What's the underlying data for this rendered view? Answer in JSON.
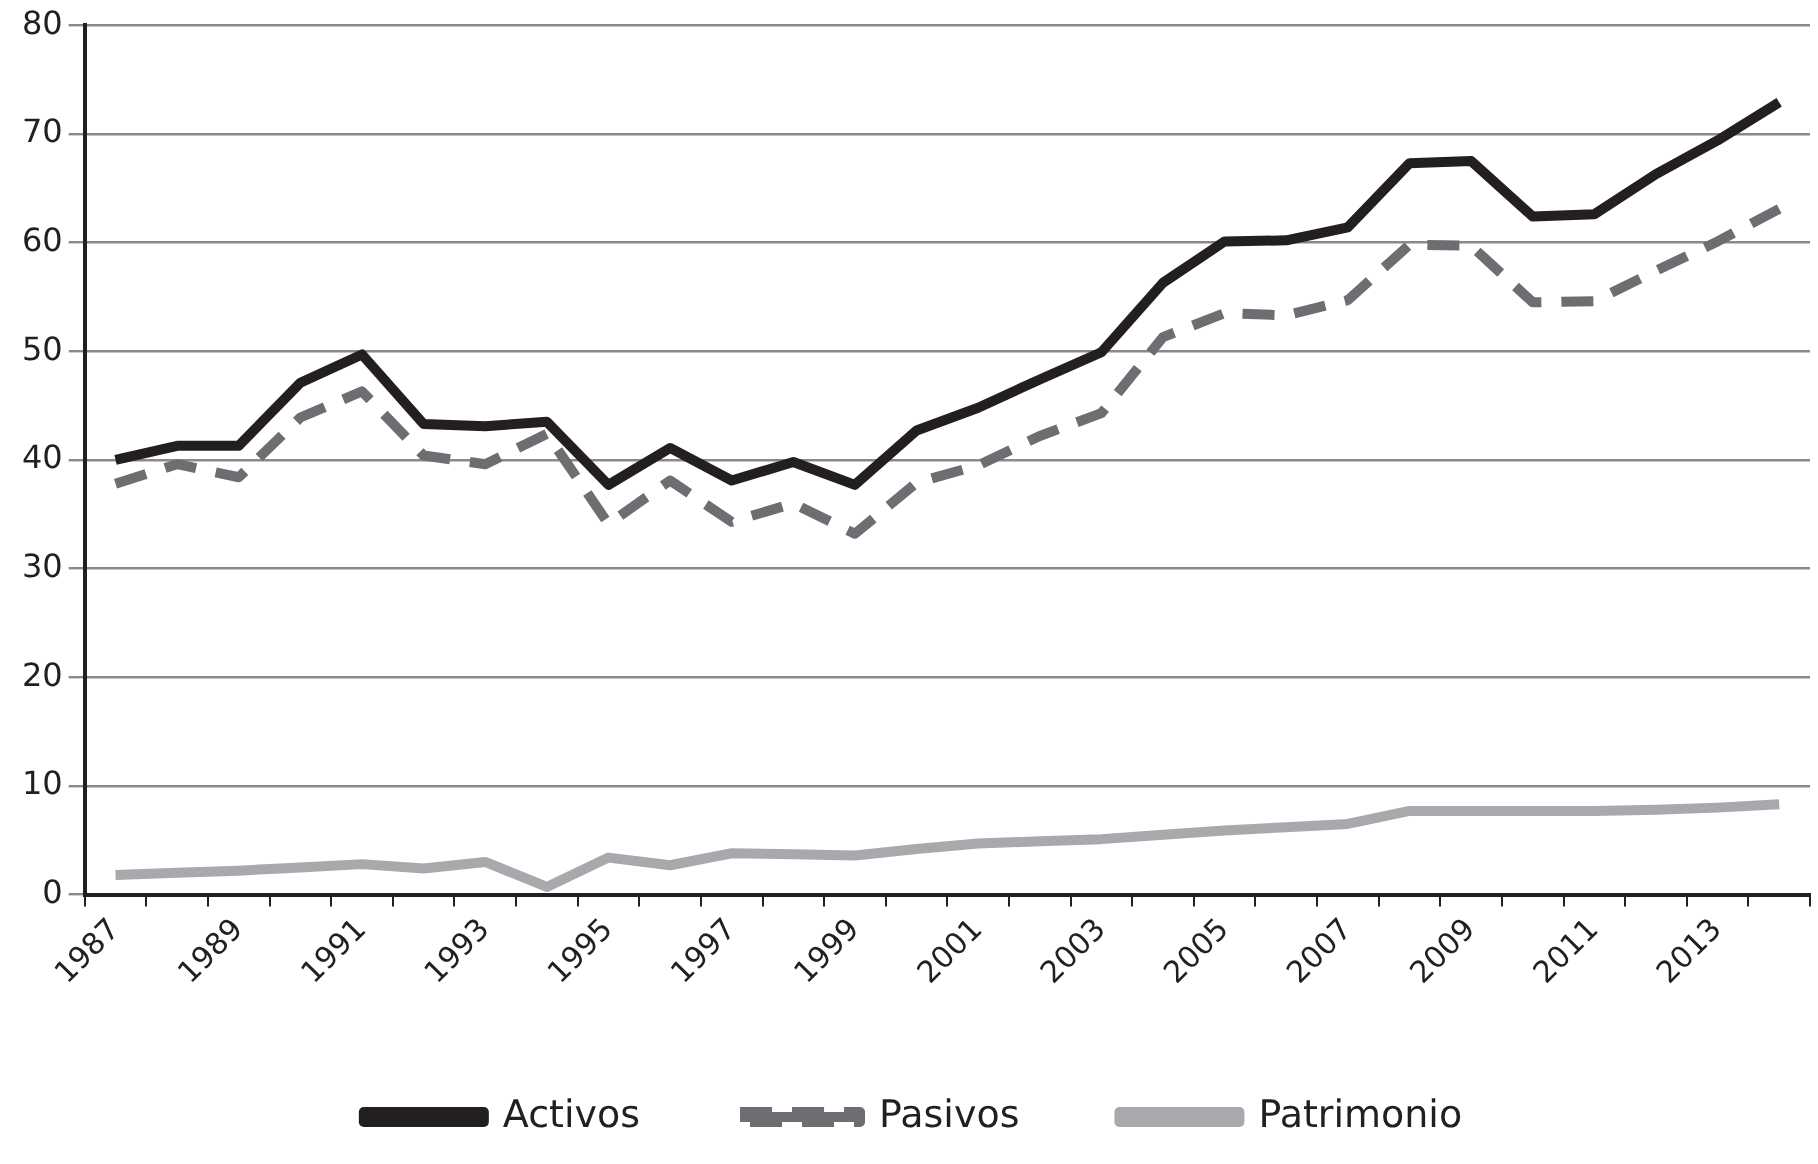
{
  "chart_data": {
    "type": "line",
    "categories": [
      "1987",
      null,
      "1989",
      null,
      "1991",
      null,
      "1993",
      null,
      "1995",
      null,
      "1997",
      null,
      "1999",
      null,
      "2001",
      null,
      "2003",
      null,
      "2005",
      null,
      "2007",
      null,
      "2009",
      null,
      "2011",
      null,
      "2013",
      null
    ],
    "series": [
      {
        "name": "Activos",
        "color": "#231f20",
        "line_style": "solid",
        "values": [
          40.0,
          41.3,
          41.3,
          47.1,
          49.7,
          43.3,
          43.1,
          43.5,
          37.7,
          41.1,
          38.1,
          39.8,
          37.7,
          42.7,
          44.8,
          47.4,
          49.9,
          56.3,
          60.1,
          60.2,
          61.4,
          67.3,
          67.5,
          62.4,
          62.6,
          66.3,
          69.4,
          72.9
        ]
      },
      {
        "name": "Pasivos",
        "color": "#6d6e71",
        "line_style": "dashed",
        "values": [
          37.8,
          39.6,
          38.4,
          43.9,
          46.3,
          40.4,
          39.6,
          42.4,
          34.1,
          38.1,
          34.3,
          36.0,
          33.2,
          37.9,
          39.5,
          42.2,
          44.3,
          51.3,
          53.5,
          53.3,
          54.7,
          59.8,
          59.7,
          54.5,
          54.6,
          57.4,
          60.1,
          63.1
        ]
      },
      {
        "name": "Patrimonio",
        "color": "#a7a9ac",
        "line_style": "solid",
        "values": [
          1.8,
          2.0,
          2.2,
          2.5,
          2.8,
          2.4,
          3.0,
          0.7,
          3.4,
          2.7,
          3.8,
          3.7,
          3.6,
          4.2,
          4.7,
          4.9,
          5.1,
          5.5,
          5.9,
          6.2,
          6.5,
          7.7,
          7.7,
          7.7,
          7.7,
          7.8,
          8.0,
          8.3
        ]
      }
    ],
    "ylim": [
      0,
      80
    ],
    "yticks": [
      0,
      10,
      20,
      30,
      40,
      50,
      60,
      70,
      80
    ],
    "grid": "y",
    "legend": "bottom",
    "marker": "none"
  }
}
